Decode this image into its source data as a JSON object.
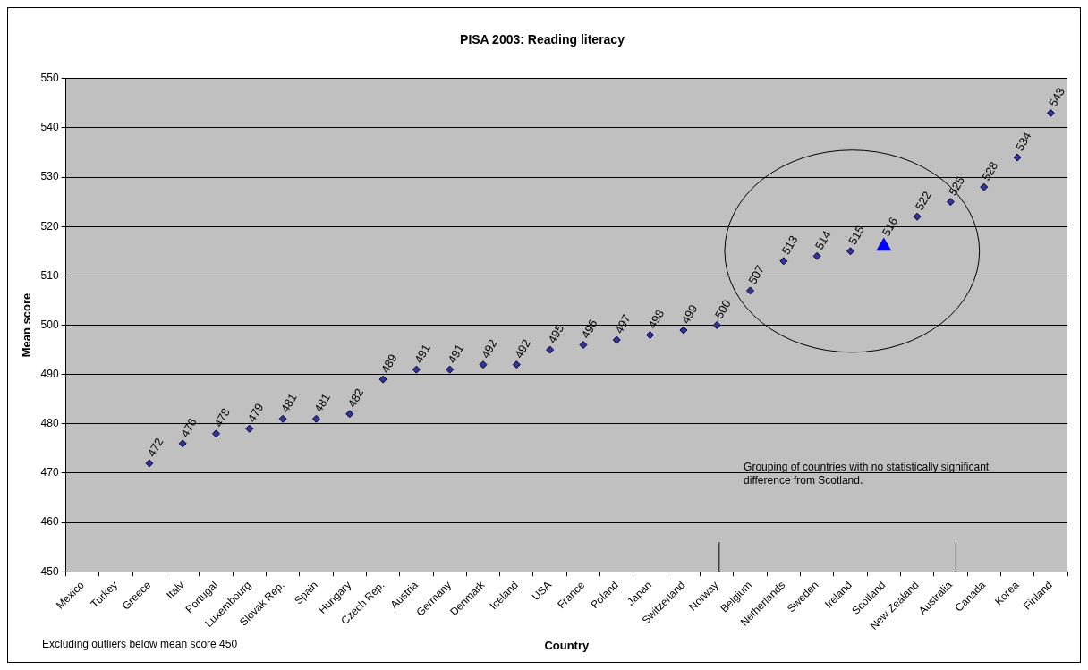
{
  "chart_data": {
    "type": "scatter",
    "title": "PISA 2003: Reading literacy",
    "xlabel": "Country",
    "ylabel": "Mean score",
    "categories": [
      "Mexico",
      "Turkey",
      "Greece",
      "Italy",
      "Portugal",
      "Luxembourg",
      "Slovak Rep.",
      "Spain",
      "Hungary",
      "Czech Rep.",
      "Austria",
      "Germany",
      "Denmark",
      "Iceland",
      "USA",
      "France",
      "Poland",
      "Japan",
      "Switzerland",
      "Norway",
      "Belgium",
      "Netherlands",
      "Sweden",
      "Ireland",
      "Scotland",
      "New Zealand",
      "Australia",
      "Canada",
      "Korea",
      "Finland"
    ],
    "series": [
      {
        "color": "#333399",
        "marker": "diamond",
        "values": [
          null,
          null,
          472,
          476,
          478,
          479,
          481,
          481,
          482,
          489,
          491,
          491,
          492,
          492,
          495,
          496,
          497,
          498,
          499,
          500,
          507,
          513,
          514,
          515,
          null,
          522,
          525,
          528,
          534,
          543
        ]
      },
      {
        "color": "#0000ff",
        "marker": "triangle",
        "values": [
          null,
          null,
          null,
          null,
          null,
          null,
          null,
          null,
          null,
          null,
          null,
          null,
          null,
          null,
          null,
          null,
          null,
          null,
          null,
          null,
          null,
          null,
          null,
          null,
          516,
          null,
          null,
          null,
          null,
          null
        ]
      }
    ],
    "ylim": [
      450,
      550
    ],
    "yticks": [
      450,
      460,
      470,
      480,
      490,
      500,
      510,
      520,
      530,
      540,
      550
    ],
    "grid": "y",
    "legend": false,
    "data_labels": true,
    "annotations": [
      "Grouping of countries with no statistically significant difference from Scotland.",
      "Excluding outliers below mean score 450"
    ]
  }
}
